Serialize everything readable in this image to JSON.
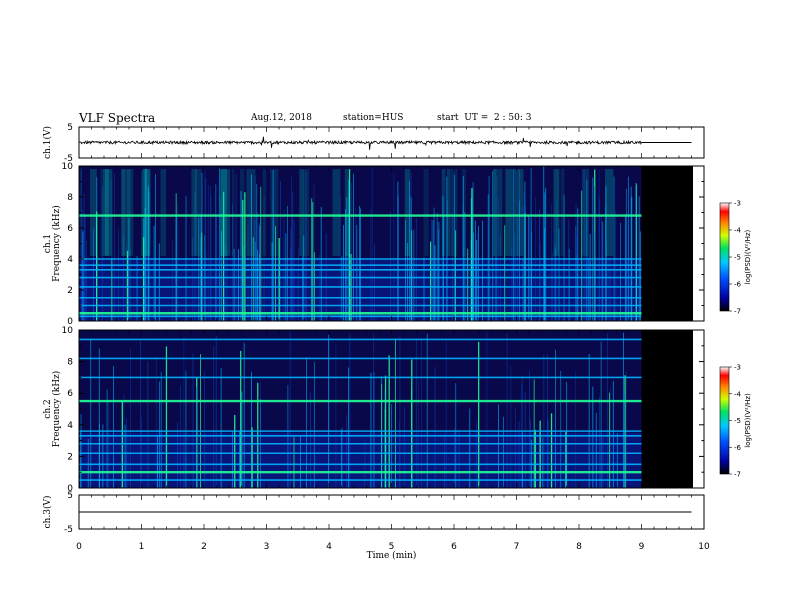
{
  "header": {
    "title": "VLF Spectra",
    "date": "Aug.12, 2018",
    "station": "station=HUS",
    "start_ut": "start  UT =  2 : 50: 3"
  },
  "colors": {
    "spectrogram_bg": "#08084a",
    "line_mid": "#00b4ff",
    "line_bright": "#22ff99",
    "no_data": "#000000"
  },
  "chart_data": [
    {
      "type": "line",
      "name": "waveform-ch1",
      "ylabel": "ch.1(V)",
      "ylim": [
        -5,
        5
      ],
      "yticks": [
        "5",
        "-5"
      ],
      "x_range_min": [
        0,
        10
      ],
      "data_end_min": 9.0,
      "description_values": {
        "baseline_v": 0.0,
        "typical_noise_v": 0.2
      }
    },
    {
      "type": "heatmap",
      "name": "spectrogram-ch1",
      "ylabel": "ch.1\nFrequency (kHz)",
      "ylim": [
        0,
        10
      ],
      "yticks": [
        "0",
        "2",
        "4",
        "6",
        "8",
        "10"
      ],
      "x_range_min": [
        0,
        10
      ],
      "data_end_min": 9.0,
      "noise_floor_khz": 4.0,
      "bright_band_khz": [
        0.5,
        6.8
      ],
      "persistent_lines_khz": [
        0.3,
        0.5,
        1.0,
        1.5,
        2.2,
        2.8,
        3.3,
        3.6,
        4.0,
        6.8
      ]
    },
    {
      "type": "heatmap",
      "name": "spectrogram-ch2",
      "ylabel": "ch.2\nFrequency (kHz)",
      "ylim": [
        0,
        10
      ],
      "yticks": [
        "0",
        "2",
        "4",
        "6",
        "8",
        "10"
      ],
      "x_range_min": [
        0,
        10
      ],
      "data_end_min": 9.0,
      "noise_floor_khz": 3.5,
      "bright_band_khz": [
        1.0,
        5.5
      ],
      "persistent_lines_khz": [
        0.5,
        1.0,
        1.5,
        2.2,
        2.8,
        3.3,
        3.6,
        5.5,
        7.0,
        8.2,
        9.4
      ]
    },
    {
      "type": "line",
      "name": "waveform-ch3",
      "ylabel": "ch.3(V)",
      "ylim": [
        -5,
        5
      ],
      "yticks": [
        "5",
        "-5"
      ],
      "x_range_min": [
        0,
        10
      ],
      "description_values": {
        "baseline_v": 0.0
      }
    }
  ],
  "xaxis": {
    "label": "Time (min)",
    "ticks": [
      "0",
      "1",
      "2",
      "3",
      "4",
      "5",
      "6",
      "7",
      "8",
      "9",
      "10"
    ]
  },
  "colorbars": [
    {
      "label": "log(PSD)(V²/Hz)",
      "ticks": [
        "-3",
        "-4",
        "-5",
        "-6",
        "-7"
      ],
      "range": [
        -7,
        -3
      ]
    },
    {
      "label": "log(PSD)(V²/Hz)",
      "ticks": [
        "-3",
        "-4",
        "-5",
        "-6",
        "-7"
      ],
      "range": [
        -7,
        -3
      ]
    }
  ]
}
